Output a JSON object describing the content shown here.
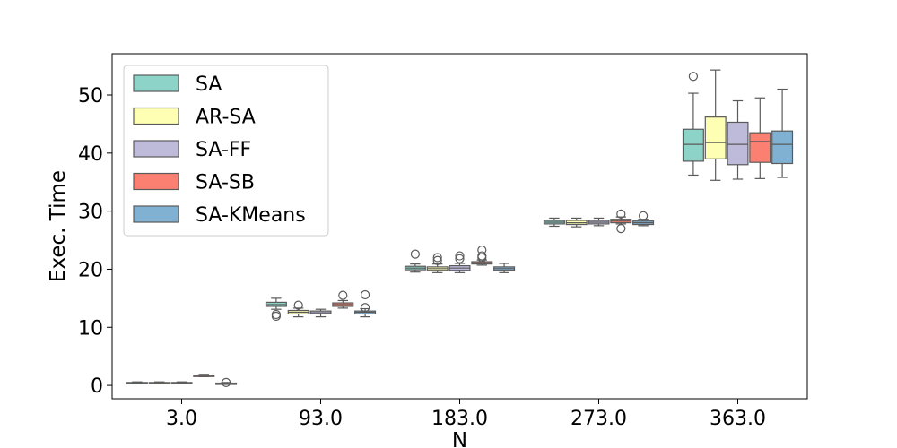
{
  "chart_data": {
    "type": "box",
    "title": "",
    "xlabel": "N",
    "ylabel": "Exec. Time",
    "categories": [
      "3.0",
      "93.0",
      "183.0",
      "273.0",
      "363.0"
    ],
    "ylim": [
      -2.3,
      57.1
    ],
    "yticks": [
      0,
      10,
      20,
      30,
      40,
      50
    ],
    "legend_position": "top-left",
    "grid": false,
    "series": [
      {
        "name": "SA",
        "color": "#8dd3c7",
        "boxes": [
          {
            "min": 0.3,
            "q1": 0.4,
            "median": 0.45,
            "q3": 0.5,
            "max": 0.6,
            "outliers": []
          },
          {
            "min": 13.1,
            "q1": 13.6,
            "median": 13.9,
            "q3": 14.3,
            "max": 15.0,
            "outliers": [
              11.9,
              12.2
            ]
          },
          {
            "min": 19.5,
            "q1": 19.9,
            "median": 20.2,
            "q3": 20.5,
            "max": 20.9,
            "outliers": [
              22.6
            ]
          },
          {
            "min": 27.4,
            "q1": 27.8,
            "median": 28.1,
            "q3": 28.4,
            "max": 28.8,
            "outliers": []
          },
          {
            "min": 36.2,
            "q1": 38.6,
            "median": 41.5,
            "q3": 44.1,
            "max": 50.3,
            "outliers": [
              53.2
            ]
          }
        ]
      },
      {
        "name": "AR-SA",
        "color": "#ffffb3",
        "boxes": [
          {
            "min": 0.3,
            "q1": 0.4,
            "median": 0.45,
            "q3": 0.5,
            "max": 0.6,
            "outliers": []
          },
          {
            "min": 11.8,
            "q1": 12.3,
            "median": 12.6,
            "q3": 12.9,
            "max": 13.3,
            "outliers": [
              13.8
            ]
          },
          {
            "min": 19.4,
            "q1": 19.8,
            "median": 20.1,
            "q3": 20.4,
            "max": 20.9,
            "outliers": [
              21.5,
              22.0
            ]
          },
          {
            "min": 27.3,
            "q1": 27.7,
            "median": 28.0,
            "q3": 28.4,
            "max": 28.8,
            "outliers": []
          },
          {
            "min": 35.3,
            "q1": 39.0,
            "median": 41.8,
            "q3": 46.2,
            "max": 54.3,
            "outliers": []
          }
        ]
      },
      {
        "name": "SA-FF",
        "color": "#bebada",
        "boxes": [
          {
            "min": 0.3,
            "q1": 0.4,
            "median": 0.45,
            "q3": 0.5,
            "max": 0.6,
            "outliers": []
          },
          {
            "min": 11.8,
            "q1": 12.3,
            "median": 12.5,
            "q3": 12.8,
            "max": 13.1,
            "outliers": []
          },
          {
            "min": 19.4,
            "q1": 19.8,
            "median": 20.2,
            "q3": 20.6,
            "max": 21.0,
            "outliers": [
              21.8,
              22.3
            ]
          },
          {
            "min": 27.5,
            "q1": 27.8,
            "median": 28.1,
            "q3": 28.4,
            "max": 28.8,
            "outliers": []
          },
          {
            "min": 35.5,
            "q1": 38.0,
            "median": 41.5,
            "q3": 45.3,
            "max": 49.0,
            "outliers": []
          }
        ]
      },
      {
        "name": "SA-SB",
        "color": "#fb8072",
        "boxes": [
          {
            "min": 1.5,
            "q1": 1.65,
            "median": 1.7,
            "q3": 1.75,
            "max": 1.9,
            "outliers": []
          },
          {
            "min": 13.3,
            "q1": 13.6,
            "median": 13.9,
            "q3": 14.2,
            "max": 14.6,
            "outliers": [
              15.5
            ]
          },
          {
            "min": 20.7,
            "q1": 20.9,
            "median": 21.1,
            "q3": 21.3,
            "max": 21.6,
            "outliers": [
              22.0,
              22.3,
              23.3
            ]
          },
          {
            "min": 27.8,
            "q1": 28.0,
            "median": 28.3,
            "q3": 28.6,
            "max": 29.0,
            "outliers": [
              27.0,
              29.5
            ]
          },
          {
            "min": 35.6,
            "q1": 38.4,
            "median": 42.0,
            "q3": 43.5,
            "max": 49.5,
            "outliers": []
          }
        ]
      },
      {
        "name": "SA-KMeans",
        "color": "#80b1d3",
        "boxes": [
          {
            "min": 0.2,
            "q1": 0.3,
            "median": 0.35,
            "q3": 0.4,
            "max": 0.5,
            "outliers": [
              0.5
            ]
          },
          {
            "min": 11.8,
            "q1": 12.3,
            "median": 12.6,
            "q3": 12.8,
            "max": 13.2,
            "outliers": [
              13.4,
              15.6
            ]
          },
          {
            "min": 19.4,
            "q1": 19.8,
            "median": 20.1,
            "q3": 20.4,
            "max": 21.0,
            "outliers": []
          },
          {
            "min": 27.5,
            "q1": 27.7,
            "median": 28.0,
            "q3": 28.3,
            "max": 28.6,
            "outliers": [
              29.2
            ]
          },
          {
            "min": 35.8,
            "q1": 38.2,
            "median": 41.5,
            "q3": 43.8,
            "max": 51.0,
            "outliers": []
          }
        ]
      }
    ]
  }
}
